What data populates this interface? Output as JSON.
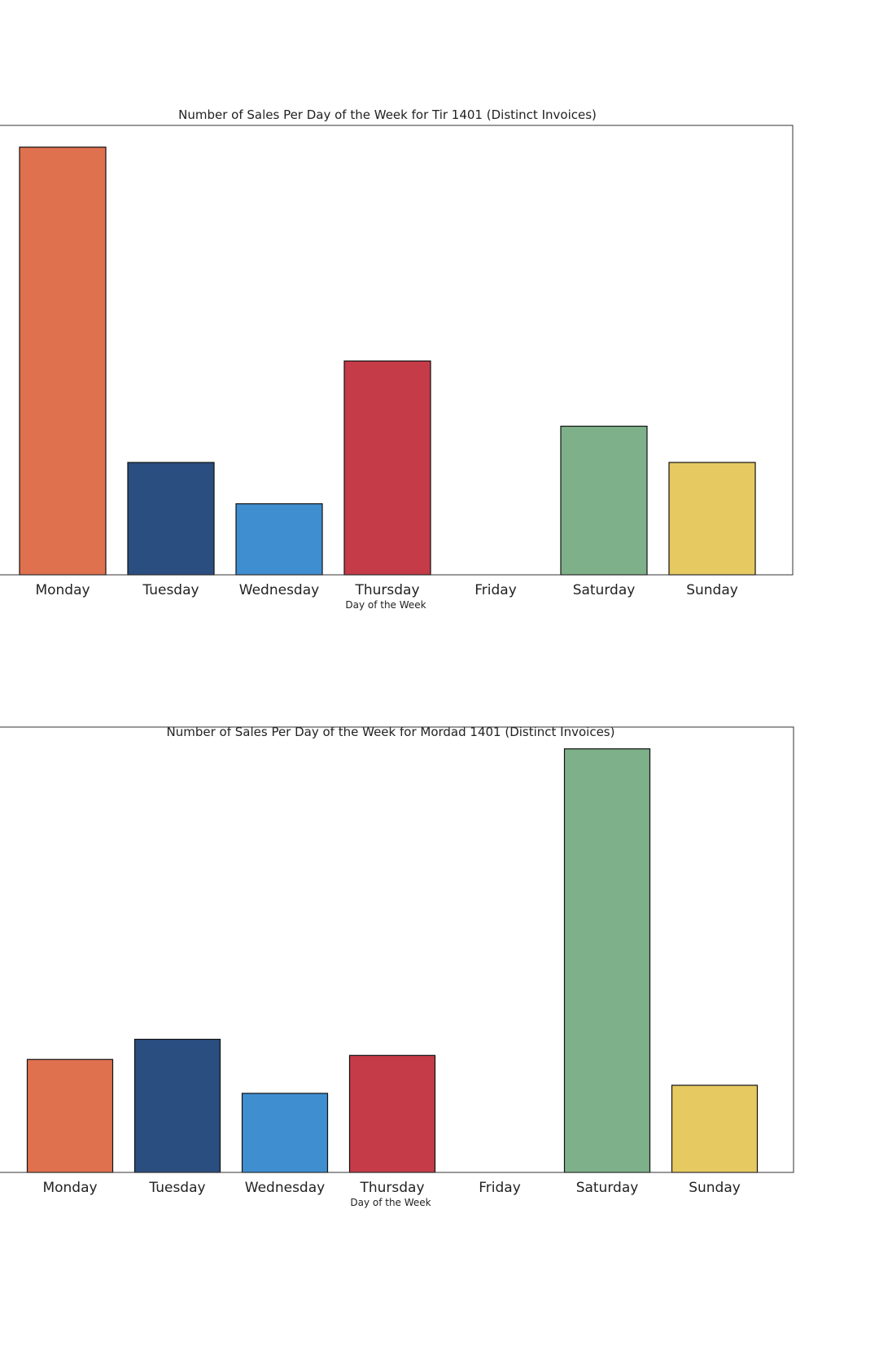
{
  "chart_data": [
    {
      "type": "bar",
      "title": "Number of Sales Per Day of the Week for Tir 1401 (Distinct Invoices)",
      "xlabel": "Day of the Week",
      "ylabel": "",
      "categories": [
        "Monday",
        "Tuesday",
        "Wednesday",
        "Thursday",
        "Friday",
        "Saturday",
        "Sunday"
      ],
      "values": [
        590,
        155,
        98,
        295,
        0,
        205,
        155
      ],
      "ylim": [
        0,
        620
      ],
      "colors": [
        "#E0714F",
        "#2A4E80",
        "#3F8ED0",
        "#C53B47",
        "#9E9E9E",
        "#7EB08A",
        "#E6C961"
      ],
      "grid": false
    },
    {
      "type": "bar",
      "title": "Number of Sales Per Day of the Week for Mordad 1401 (Distinct Invoices)",
      "xlabel": "Day of the Week",
      "ylabel": "",
      "categories": [
        "Monday",
        "Tuesday",
        "Wednesday",
        "Thursday",
        "Friday",
        "Saturday",
        "Sunday"
      ],
      "values": [
        140,
        165,
        98,
        145,
        0,
        525,
        108
      ],
      "ylim": [
        0,
        552
      ],
      "colors": [
        "#E0714F",
        "#2A4E80",
        "#3F8ED0",
        "#C53B47",
        "#9E9E9E",
        "#7EB08A",
        "#E6C961"
      ],
      "grid": false
    }
  ]
}
